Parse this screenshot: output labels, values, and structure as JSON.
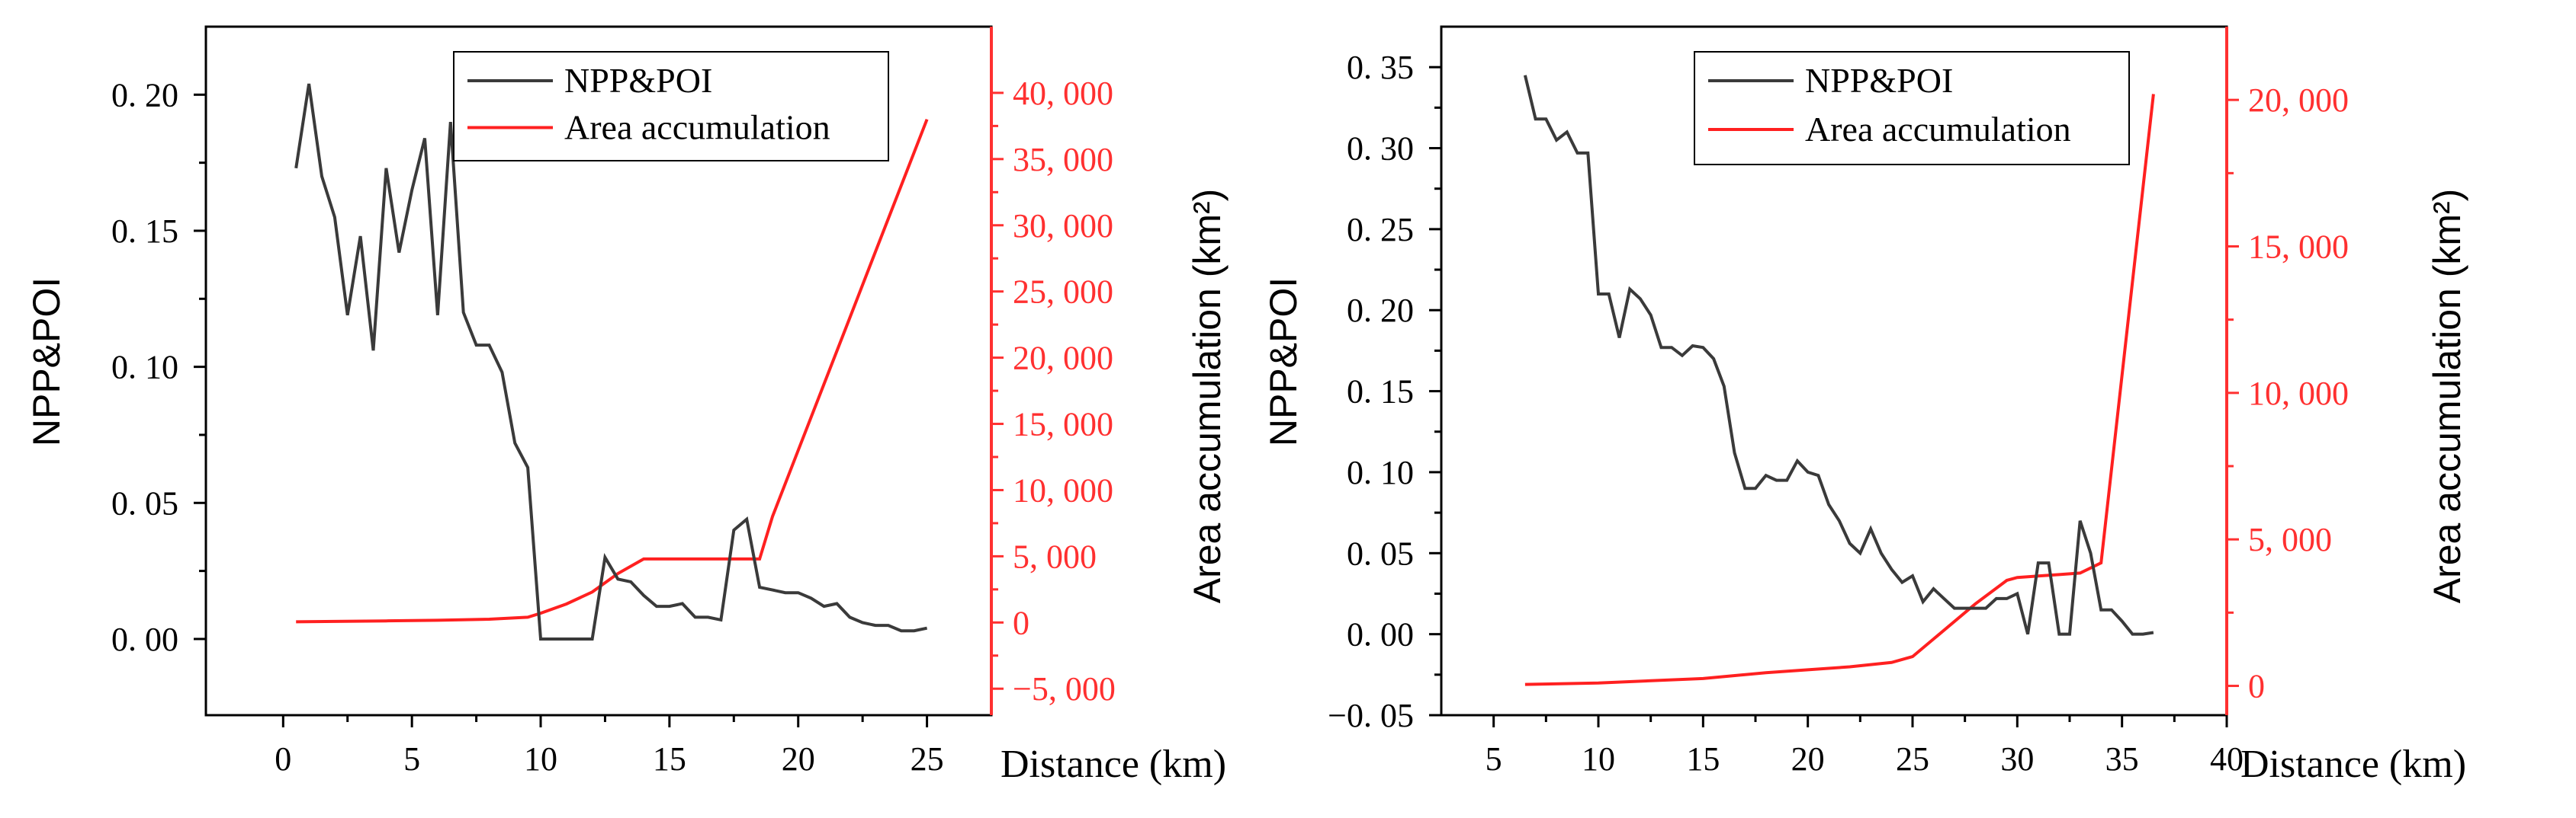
{
  "colors": {
    "npp": "#3a3a3a",
    "area": "#ff2020",
    "axis": "#000000",
    "rightAxis": "#ff3030"
  },
  "chart_data": [
    {
      "type": "line",
      "xlabel": "Distance (km)",
      "ylabel_left": "NPP&POI",
      "ylabel_right": "Area accumulation (km²)",
      "xlim": [
        -3,
        27.5
      ],
      "ylim_left": [
        -0.028,
        0.225
      ],
      "ylim_right": [
        -7000,
        45000
      ],
      "xticks": [
        0,
        5,
        10,
        15,
        20,
        25
      ],
      "xtick_labels": [
        "0",
        "5",
        "10",
        "15",
        "20",
        "25"
      ],
      "yticks_left": [
        0,
        0.05,
        0.1,
        0.15,
        0.2
      ],
      "ytick_labels_left": [
        "0. 00",
        "0. 05",
        "0. 10",
        "0. 15",
        "0. 20"
      ],
      "yticks_right": [
        -5000,
        0,
        5000,
        10000,
        15000,
        20000,
        25000,
        30000,
        35000,
        40000
      ],
      "ytick_labels_right": [
        "−5, 000",
        "0",
        "5, 000",
        "10, 000",
        "15, 000",
        "20, 000",
        "25, 000",
        "30, 000",
        "35, 000",
        "40, 000"
      ],
      "legend_position": "top-right",
      "series": [
        {
          "name": "NPP&POI",
          "axis": "left",
          "x": [
            0.5,
            1.0,
            1.5,
            2.0,
            2.5,
            3.0,
            3.5,
            4.0,
            4.5,
            5.0,
            5.5,
            6.0,
            6.5,
            7.0,
            7.5,
            8.0,
            8.5,
            9.0,
            9.5,
            10.0,
            10.5,
            11.0,
            11.5,
            12.0,
            12.5,
            13.0,
            13.5,
            14.0,
            14.5,
            15.0,
            15.5,
            16.0,
            16.5,
            17.0,
            17.5,
            18.0,
            18.5,
            19.0,
            19.5,
            20.0,
            20.5,
            21.0,
            21.5,
            22.0,
            22.5,
            23.0,
            23.5,
            24.0,
            24.5,
            25.0
          ],
          "values": [
            0.173,
            0.204,
            0.17,
            0.155,
            0.119,
            0.148,
            0.106,
            0.173,
            0.142,
            0.165,
            0.184,
            0.119,
            0.19,
            0.12,
            0.108,
            0.108,
            0.098,
            0.072,
            0.063,
            0.0,
            0.0,
            0.0,
            0.0,
            0.0,
            0.03,
            0.022,
            0.021,
            0.016,
            0.012,
            0.012,
            0.013,
            0.008,
            0.008,
            0.007,
            0.04,
            0.044,
            0.019,
            0.018,
            0.017,
            0.017,
            0.015,
            0.012,
            0.013,
            0.008,
            0.006,
            0.005,
            0.005,
            0.003,
            0.003,
            0.004
          ]
        },
        {
          "name": "Area accumulation",
          "axis": "right",
          "x": [
            0.5,
            2,
            4,
            6,
            8,
            9.5,
            10,
            11,
            12,
            13,
            14,
            15,
            16,
            17,
            18.5,
            19,
            20,
            21,
            22,
            23,
            24,
            25
          ],
          "values": [
            50,
            80,
            120,
            170,
            250,
            400,
            700,
            1400,
            2300,
            3700,
            4800,
            4800,
            4800,
            4800,
            4800,
            8000,
            13000,
            18000,
            23000,
            28000,
            33000,
            38000
          ]
        }
      ]
    },
    {
      "type": "line",
      "xlabel": "Distance (km)",
      "ylabel_left": "NPP&POI",
      "ylabel_right": "Area accumulation (km²)",
      "xlim": [
        2.5,
        40
      ],
      "ylim_left": [
        -0.05,
        0.375
      ],
      "ylim_right": [
        -1000,
        22500
      ],
      "xticks": [
        5,
        10,
        15,
        20,
        25,
        30,
        35,
        40
      ],
      "xtick_labels": [
        "5",
        "10",
        "15",
        "20",
        "25",
        "30",
        "35",
        "40"
      ],
      "yticks_left": [
        -0.05,
        0,
        0.05,
        0.1,
        0.15,
        0.2,
        0.25,
        0.3,
        0.35
      ],
      "ytick_labels_left": [
        "−0. 05",
        "0. 00",
        "0. 05",
        "0. 10",
        "0. 15",
        "0. 20",
        "0. 25",
        "0. 30",
        "0. 35"
      ],
      "yticks_right": [
        0,
        5000,
        10000,
        15000,
        20000
      ],
      "ytick_labels_right": [
        "0",
        "5, 000",
        "10, 000",
        "15, 000",
        "20, 000"
      ],
      "legend_position": "top-right",
      "series": [
        {
          "name": "NPP&POI",
          "axis": "left",
          "x": [
            6.5,
            7,
            7.5,
            8,
            8.5,
            9,
            9.5,
            10,
            10.5,
            11,
            11.5,
            12,
            12.5,
            13,
            13.5,
            14,
            14.5,
            15,
            15.5,
            16,
            16.5,
            17,
            17.5,
            18,
            18.5,
            19,
            19.5,
            20,
            20.5,
            21,
            21.5,
            22,
            22.5,
            23,
            23.5,
            24,
            24.5,
            25,
            25.5,
            26,
            26.5,
            27,
            27.5,
            28,
            28.5,
            29,
            29.5,
            30,
            30.5,
            31,
            31.5,
            32,
            32.5,
            33,
            33.5,
            34,
            34.5,
            35,
            35.5,
            36,
            36.5
          ],
          "values": [
            0.345,
            0.318,
            0.318,
            0.305,
            0.31,
            0.297,
            0.297,
            0.21,
            0.21,
            0.183,
            0.213,
            0.207,
            0.197,
            0.177,
            0.177,
            0.172,
            0.178,
            0.177,
            0.17,
            0.153,
            0.112,
            0.09,
            0.09,
            0.098,
            0.095,
            0.095,
            0.107,
            0.1,
            0.098,
            0.08,
            0.07,
            0.056,
            0.05,
            0.065,
            0.05,
            0.04,
            0.032,
            0.036,
            0.02,
            0.028,
            0.022,
            0.016,
            0.016,
            0.016,
            0.016,
            0.022,
            0.022,
            0.025,
            0.0,
            0.044,
            0.044,
            0.0,
            0.0,
            0.07,
            0.05,
            0.015,
            0.015,
            0.008,
            0.0,
            0.0,
            0.001
          ]
        },
        {
          "name": "Area accumulation",
          "axis": "right",
          "x": [
            6.5,
            10,
            15,
            18,
            20,
            22,
            24,
            25,
            26,
            28,
            29.5,
            30,
            31,
            32,
            33,
            34,
            36.5
          ],
          "values": [
            50,
            100,
            250,
            450,
            550,
            650,
            800,
            1000,
            1600,
            2800,
            3600,
            3700,
            3750,
            3800,
            3850,
            4200,
            20200
          ]
        }
      ]
    }
  ]
}
